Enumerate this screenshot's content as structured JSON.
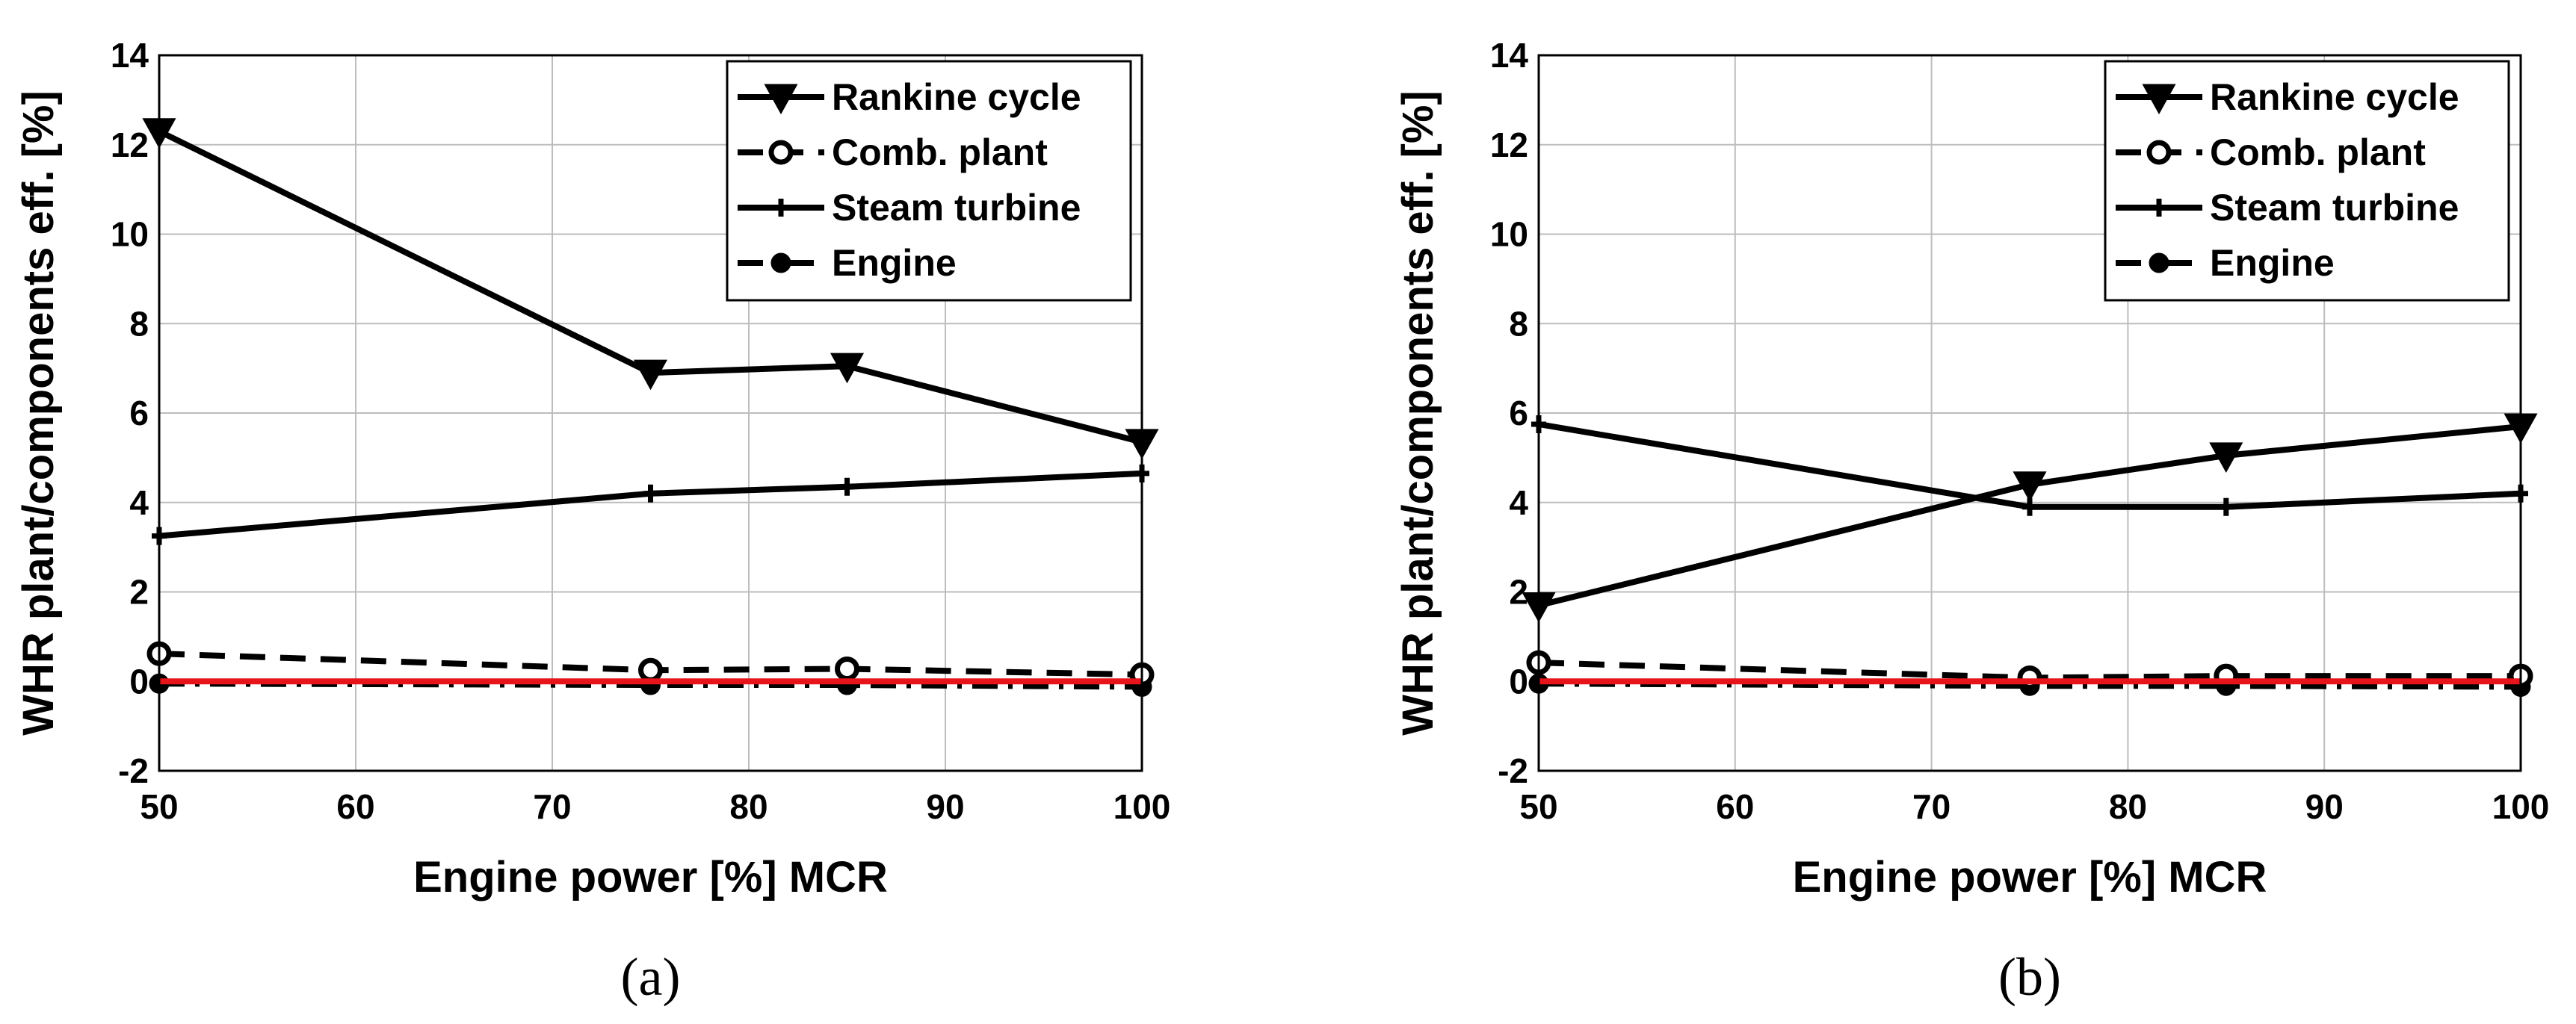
{
  "chart_data": [
    {
      "type": "line",
      "panel_label": "(a)",
      "xlabel": "Engine power [%] MCR",
      "ylabel": "WHR plant/components eff. [%]",
      "xlim": [
        50,
        100
      ],
      "ylim": [
        -2,
        14
      ],
      "xticks": [
        50,
        60,
        70,
        80,
        90,
        100
      ],
      "yticks": [
        -2,
        0,
        2,
        4,
        6,
        8,
        10,
        12,
        14
      ],
      "grid": true,
      "legend_position": "top-right",
      "reference_line": {
        "y": 0,
        "color": "#e8141b"
      },
      "series": [
        {
          "name": "Rankine cycle",
          "marker": "triangle-down",
          "dash": "solid",
          "x": [
            50,
            75,
            85,
            100
          ],
          "y": [
            12.3,
            6.9,
            7.05,
            5.35
          ]
        },
        {
          "name": "Comb. plant",
          "marker": "circle-open",
          "dash": "dashed",
          "x": [
            50,
            75,
            85,
            100
          ],
          "y": [
            0.62,
            0.25,
            0.28,
            0.15
          ]
        },
        {
          "name": "Steam turbine",
          "marker": "plus",
          "dash": "solid",
          "x": [
            50,
            75,
            85,
            100
          ],
          "y": [
            3.25,
            4.2,
            4.35,
            4.65
          ]
        },
        {
          "name": "Engine",
          "marker": "circle-filled",
          "dash": "dashdot",
          "x": [
            50,
            75,
            85,
            100
          ],
          "y": [
            -0.05,
            -0.08,
            -0.08,
            -0.12
          ]
        }
      ]
    },
    {
      "type": "line",
      "panel_label": "(b)",
      "xlabel": "Engine power [%] MCR",
      "ylabel": "WHR plant/components eff. [%]",
      "xlim": [
        50,
        100
      ],
      "ylim": [
        -2,
        14
      ],
      "xticks": [
        50,
        60,
        70,
        80,
        90,
        100
      ],
      "yticks": [
        -2,
        0,
        2,
        4,
        6,
        8,
        10,
        12,
        14
      ],
      "grid": true,
      "legend_position": "top-right",
      "reference_line": {
        "y": 0,
        "color": "#e8141b"
      },
      "series": [
        {
          "name": "Rankine cycle",
          "marker": "triangle-down",
          "dash": "solid",
          "x": [
            50,
            75,
            85,
            100
          ],
          "y": [
            1.7,
            4.4,
            5.05,
            5.7
          ]
        },
        {
          "name": "Comb. plant",
          "marker": "circle-open",
          "dash": "dashed",
          "x": [
            50,
            75,
            85,
            100
          ],
          "y": [
            0.42,
            0.08,
            0.12,
            0.12
          ]
        },
        {
          "name": "Steam turbine",
          "marker": "plus",
          "dash": "solid",
          "x": [
            50,
            75,
            85,
            100
          ],
          "y": [
            5.75,
            3.9,
            3.9,
            4.2
          ]
        },
        {
          "name": "Engine",
          "marker": "circle-filled",
          "dash": "dashdot",
          "x": [
            50,
            75,
            85,
            100
          ],
          "y": [
            -0.05,
            -0.1,
            -0.1,
            -0.12
          ]
        }
      ]
    }
  ]
}
